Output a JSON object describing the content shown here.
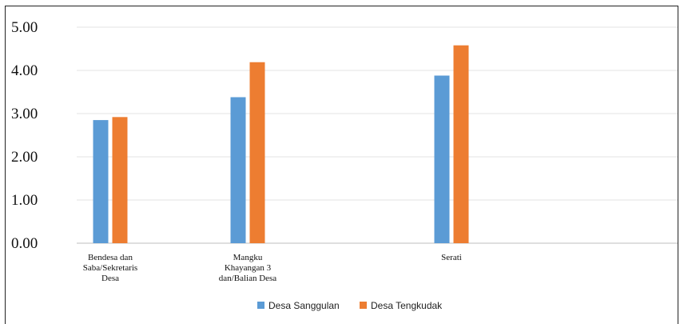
{
  "chart_data": {
    "type": "bar",
    "title": "",
    "xlabel": "",
    "ylabel": "",
    "ylim": [
      0,
      5
    ],
    "yticks": [
      "0.00",
      "1.00",
      "2.00",
      "3.00",
      "4.00",
      "5.00"
    ],
    "categories": [
      [
        "Bendesa dan",
        "Saba/Sekretaris",
        "Desa"
      ],
      [
        "Mangku",
        "Khayangan 3",
        "dan/Balian Desa"
      ],
      [
        "Serati"
      ]
    ],
    "series": [
      {
        "name": "Desa Sanggulan",
        "color": "#5b9bd5",
        "values": [
          2.85,
          3.38,
          3.88
        ]
      },
      {
        "name": "Desa Tengkudak",
        "color": "#ed7d31",
        "values": [
          2.92,
          4.19,
          4.58
        ]
      }
    ],
    "grid": true,
    "legend": "bottom-center"
  }
}
